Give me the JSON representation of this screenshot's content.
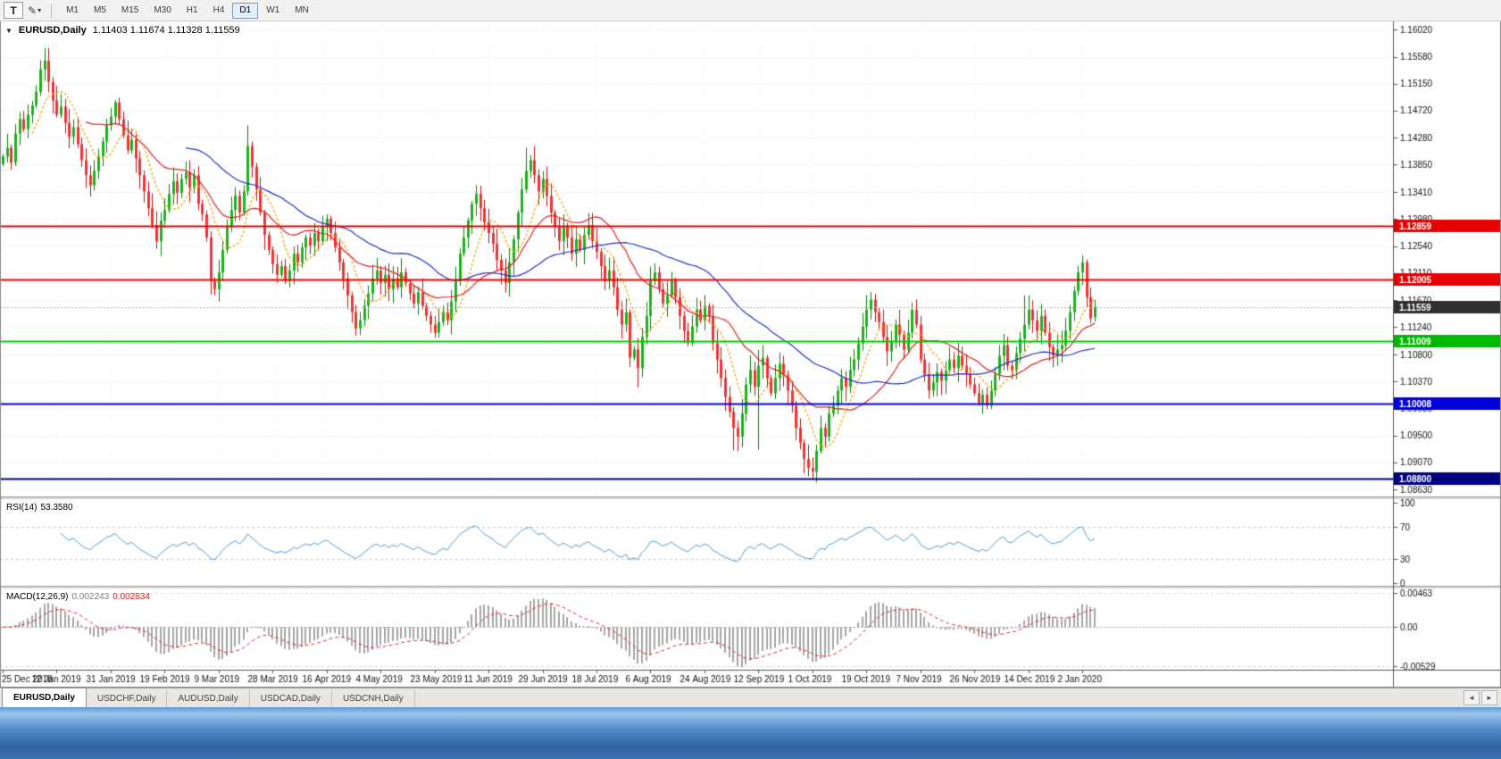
{
  "toolbar": {
    "text_tool_label": "T",
    "drawing_tool_icon": "✎",
    "dropdown_icon": "▾",
    "timeframes": [
      "M1",
      "M5",
      "M15",
      "M30",
      "H1",
      "H4",
      "D1",
      "W1",
      "MN"
    ],
    "active_timeframe": "D1"
  },
  "chart": {
    "collapse_icon": "▼",
    "symbol_title": "EURUSD,Daily",
    "ohlc_text": "1.11403 1.11674 1.11328 1.11559",
    "y_ticks": [
      "1.16020",
      "1.15580",
      "1.15150",
      "1.14720",
      "1.14280",
      "1.13850",
      "1.13410",
      "1.12980",
      "1.12540",
      "1.12110",
      "1.11670",
      "1.11240",
      "1.10800",
      "1.10370",
      "1.09930",
      "1.09500",
      "1.09070",
      "1.08630"
    ],
    "hlines": [
      {
        "price": 1.12859,
        "color": "#f00000",
        "width": 2,
        "label": "1.12859",
        "badge": "#e80000"
      },
      {
        "price": 1.12005,
        "color": "#f00000",
        "width": 2,
        "label": "1.12005",
        "badge": "#e80000"
      },
      {
        "price": 1.11559,
        "color": "#b0b0b0",
        "width": 1,
        "style": "dotted",
        "label": "1.11559",
        "badge": "#303030"
      },
      {
        "price": 1.11009,
        "color": "#00cf00",
        "width": 2,
        "label": "1.11009",
        "badge": "#00b800"
      },
      {
        "price": 1.10008,
        "color": "#0000f0",
        "width": 2,
        "label": "1.10008",
        "badge": "#0000dd"
      },
      {
        "price": 1.088,
        "color": "#000080",
        "width": 2,
        "label": "1.08800",
        "badge": "#000080"
      }
    ],
    "date_ticks": [
      "25 Dec 2018",
      "12 Jan 2019",
      "31 Jan 2019",
      "19 Feb 2019",
      "9 Mar 2019",
      "28 Mar 2019",
      "16 Apr 2019",
      "4 May 2019",
      "23 May 2019",
      "11 Jun 2019",
      "29 Jun 2019",
      "18 Jul 2019",
      "6 Aug 2019",
      "24 Aug 2019",
      "12 Sep 2019",
      "1 Oct 2019",
      "19 Oct 2019",
      "7 Nov 2019",
      "26 Nov 2019",
      "14 Dec 2019",
      "2 Jan 2020"
    ],
    "date_tick_step": 13
  },
  "chart_data": {
    "type": "candlestick",
    "symbol": "EURUSD",
    "period": "Daily",
    "price_axis_max": 1.1615,
    "price_axis_min": 1.0852,
    "closes": [
      1.1398,
      1.1412,
      1.1388,
      1.1435,
      1.1458,
      1.1442,
      1.1465,
      1.148,
      1.1502,
      1.1538,
      1.1552,
      1.1518,
      1.1488,
      1.1465,
      1.1478,
      1.1452,
      1.143,
      1.1445,
      1.1418,
      1.1392,
      1.1368,
      1.1352,
      1.1375,
      1.1398,
      1.1422,
      1.1448,
      1.1462,
      1.1485,
      1.1458,
      1.1432,
      1.1408,
      1.1425,
      1.1395,
      1.1368,
      1.1342,
      1.1315,
      1.1288,
      1.1262,
      1.1295,
      1.1312,
      1.1338,
      1.1358,
      1.134,
      1.1362,
      1.1372,
      1.1348,
      1.1368,
      1.1322,
      1.1305,
      1.1268,
      1.1198,
      1.1185,
      1.1212,
      1.1248,
      1.1285,
      1.1312,
      1.1335,
      1.1308,
      1.1342,
      1.1415,
      1.1382,
      1.1345,
      1.1308,
      1.1272,
      1.1248,
      1.1225,
      1.1208,
      1.1222,
      1.1198,
      1.1215,
      1.1242,
      1.1228,
      1.1252,
      1.1268,
      1.1255,
      1.1275,
      1.1262,
      1.1285,
      1.1298,
      1.1275,
      1.1252,
      1.1228,
      1.1202,
      1.1175,
      1.1148,
      1.1122,
      1.1135,
      1.1158,
      1.1178,
      1.1202,
      1.1215,
      1.1195,
      1.1208,
      1.1185,
      1.1202,
      1.1188,
      1.1212,
      1.1195,
      1.1178,
      1.1162,
      1.118,
      1.1158,
      1.1142,
      1.1128,
      1.1115,
      1.1132,
      1.1148,
      1.1135,
      1.1165,
      1.1198,
      1.1242,
      1.1268,
      1.1295,
      1.1322,
      1.1338,
      1.1315,
      1.1292,
      1.1275,
      1.1258,
      1.1232,
      1.1215,
      1.1195,
      1.1228,
      1.1265,
      1.1308,
      1.1345,
      1.1375,
      1.1392,
      1.1368,
      1.1342,
      1.1362,
      1.1335,
      1.1308,
      1.1285,
      1.1262,
      1.1285,
      1.1268,
      1.1242,
      1.1265,
      1.1248,
      1.1272,
      1.1288,
      1.1262,
      1.1245,
      1.1222,
      1.1198,
      1.1215,
      1.1188,
      1.1152,
      1.1128,
      1.1148,
      1.1075,
      1.1088,
      1.1058,
      1.1108,
      1.1142,
      1.1198,
      1.1212,
      1.1185,
      1.1162,
      1.1175,
      1.1198,
      1.1172,
      1.1142,
      1.1118,
      1.1098,
      1.1125,
      1.1152,
      1.1135,
      1.1158,
      1.1142,
      1.1098,
      1.1072,
      1.1042,
      1.1012,
      1.0988,
      1.0962,
      1.0948,
      1.0985,
      1.1032,
      1.1055,
      1.1028,
      1.1062,
      1.1075,
      1.1042,
      1.1018,
      1.1042,
      1.1065,
      1.1048,
      1.1022,
      1.0998,
      1.0962,
      1.0938,
      1.0912,
      1.0898,
      1.0892,
      1.0925,
      1.0962,
      1.0948,
      1.0985,
      1.0998,
      1.1022,
      1.1042,
      1.1028,
      1.1055,
      1.1072,
      1.1098,
      1.1125,
      1.1152,
      1.1168,
      1.1148,
      1.1132,
      1.1108,
      1.1085,
      1.1102,
      1.1128,
      1.1112,
      1.1088,
      1.1115,
      1.1152,
      1.1128,
      1.1072,
      1.1048,
      1.1022,
      1.1035,
      1.1052,
      1.1038,
      1.1055,
      1.1072,
      1.1058,
      1.1078,
      1.1062,
      1.1048,
      1.1032,
      1.1018,
      1.1002,
      1.1015,
      1.0998,
      1.1022,
      1.1048,
      1.1078,
      1.1095,
      1.1062,
      1.1055,
      1.1082,
      1.1105,
      1.1128,
      1.1152,
      1.1135,
      1.1118,
      1.1142,
      1.1115,
      1.1092,
      1.1078,
      1.1088,
      1.1095,
      1.1118,
      1.1148,
      1.1182,
      1.1212,
      1.1228,
      1.1172,
      1.1138,
      1.1156
    ],
    "last_candle": {
      "open": 1.11403,
      "high": 1.11674,
      "low": 1.11328,
      "close": 1.11559
    },
    "wick_overrides": {
      "10": {
        "high": 1.1572
      },
      "50": {
        "low": 1.1176
      },
      "59": {
        "high": 1.1448
      },
      "85": {
        "low": 1.111
      },
      "104": {
        "low": 1.1107
      },
      "126": {
        "high": 1.1412
      },
      "151": {
        "low": 1.106
      },
      "153": {
        "low": 1.1027
      },
      "176": {
        "low": 1.0926
      },
      "182": {
        "low": 1.0927,
        "high": 1.1087
      },
      "195": {
        "low": 1.0879
      },
      "246": {
        "high": 1.1175
      },
      "260": {
        "high": 1.1239
      }
    },
    "moving_averages": [
      {
        "period": 8,
        "color": "#f2a500",
        "style": "dashed"
      },
      {
        "period": 21,
        "color": "#e22222",
        "style": "solid"
      },
      {
        "period": 45,
        "color": "#2233cc",
        "style": "solid"
      }
    ],
    "up_fill": "#1db21d",
    "up_stroke": "#0c7a0c",
    "down_fill": "#f23333",
    "down_stroke": "#c01212"
  },
  "rsi": {
    "title": "RSI(14)",
    "value": "53.3580",
    "period": 14,
    "levels": [
      70,
      30
    ],
    "ticks": [
      {
        "v": 100,
        "label": "100"
      },
      {
        "v": 70,
        "label": "70"
      },
      {
        "v": 30,
        "label": "30"
      },
      {
        "v": 0,
        "label": "0"
      }
    ],
    "line_color": "#4f9fd8"
  },
  "macd": {
    "title": "MACD(12,26,9)",
    "value_main": "0.002243",
    "value_signal": "0.002834",
    "fast": 12,
    "slow": 26,
    "signal": 9,
    "axis_max": 0.00463,
    "axis_min": -0.00529,
    "ticks": [
      {
        "v": 0.00463,
        "label": "0.00463"
      },
      {
        "v": 0,
        "label": "0.00"
      },
      {
        "v": -0.00529,
        "label": "-0.00529"
      }
    ],
    "histogram_color": "#a6a6a6",
    "signal_color": "#e03030"
  },
  "tabs": {
    "items": [
      "EURUSD,Daily",
      "USDCHF,Daily",
      "AUDUSD,Daily",
      "USDCAD,Daily",
      "USDCNH,Daily"
    ],
    "active_index": 0,
    "scroll_left_icon": "◄",
    "scroll_right_icon": "►"
  }
}
